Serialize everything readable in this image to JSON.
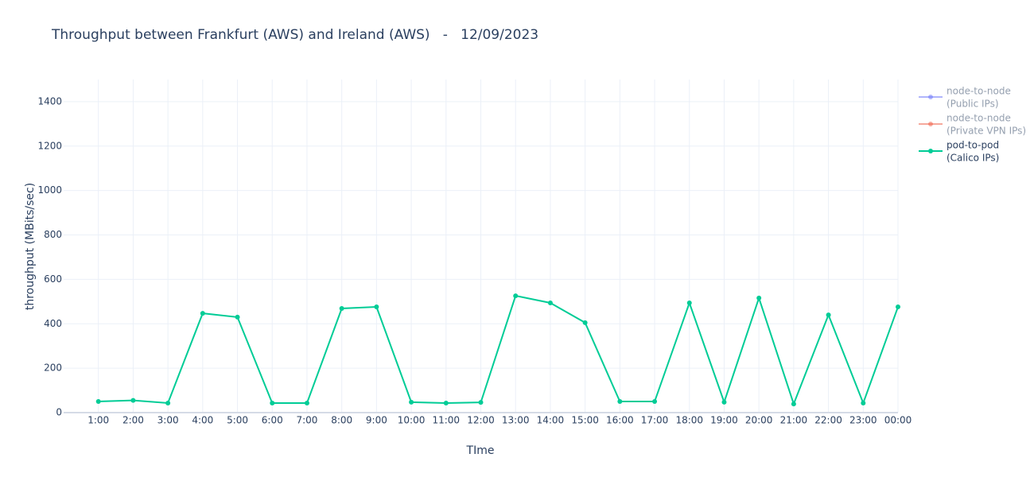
{
  "chart_data": {
    "type": "line",
    "title": "Throughput between Frankfurt (AWS) and Ireland (AWS)   -   12/09/2023",
    "xlabel": "TIme",
    "ylabel": "throughput (MBits/sec)",
    "categories": [
      "1:00",
      "2:00",
      "3:00",
      "4:00",
      "5:00",
      "6:00",
      "7:00",
      "8:00",
      "9:00",
      "10:00",
      "11:00",
      "12:00",
      "13:00",
      "14:00",
      "15:00",
      "16:00",
      "17:00",
      "18:00",
      "19:00",
      "20:00",
      "21:00",
      "22:00",
      "23:00",
      "00:00"
    ],
    "series": [
      {
        "name": [
          "node-to-node",
          "(Public IPs)"
        ],
        "color": "#636efa",
        "hidden": true
      },
      {
        "name": [
          "node-to-node",
          "(Private VPN IPs)"
        ],
        "color": "#ef553b",
        "hidden": true
      },
      {
        "name": [
          "pod-to-pod",
          "(Calico IPs)"
        ],
        "color": "#00cc96",
        "hidden": false,
        "values": [
          50,
          55,
          43,
          447,
          430,
          43,
          43,
          469,
          476,
          47,
          43,
          46,
          526,
          494,
          405,
          50,
          50,
          494,
          47,
          516,
          39,
          440,
          43,
          476
        ]
      }
    ],
    "ylim": [
      0,
      1500
    ],
    "yticks": [
      0,
      200,
      400,
      600,
      800,
      1000,
      1200,
      1400
    ],
    "grid": true,
    "legend": "right"
  }
}
